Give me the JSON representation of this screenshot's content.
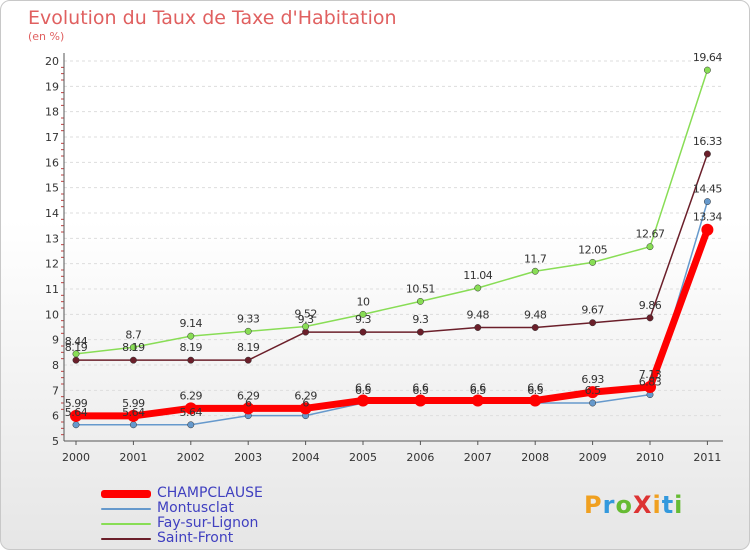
{
  "header": {
    "title": "Evolution du Taux de Taxe d'Habitation",
    "unit": "(en %)"
  },
  "logo": {
    "text": "ProXiti",
    "letters": [
      "P",
      "r",
      "o",
      "X",
      "i",
      "t",
      "i"
    ],
    "colors": [
      "#f0a020",
      "#3399dd",
      "#66bb33",
      "#dd3333",
      "#f0a020",
      "#3399dd",
      "#66bb33"
    ]
  },
  "chart_data": {
    "type": "line",
    "title": "Evolution du Taux de Taxe d'Habitation",
    "ylabel": "(en %)",
    "xlabel": "",
    "x": [
      2000,
      2001,
      2002,
      2003,
      2004,
      2005,
      2006,
      2007,
      2008,
      2009,
      2010,
      2011
    ],
    "ylim": [
      5,
      20
    ],
    "yticks": [
      5,
      6,
      7,
      8,
      9,
      10,
      11,
      12,
      13,
      14,
      15,
      16,
      17,
      18,
      19,
      20
    ],
    "grid": "horizontal",
    "legend_position": "bottom-left",
    "series": [
      {
        "name": "Saint-Front",
        "color": "#6b1f2a",
        "values": [
          8.19,
          8.19,
          8.19,
          8.19,
          9.3,
          9.3,
          9.3,
          9.48,
          9.48,
          9.67,
          9.86,
          16.33
        ],
        "labels": [
          "8.19",
          "8.19",
          "8.19",
          "8.19",
          "9.3",
          "9.3",
          "9.3",
          "9.48",
          "9.48",
          "9.67",
          "9.86",
          "16.33"
        ]
      },
      {
        "name": "Fay-sur-Lignon",
        "color": "#88dd55",
        "values": [
          8.44,
          8.7,
          9.14,
          9.33,
          9.52,
          10,
          10.51,
          11.04,
          11.7,
          12.05,
          12.67,
          19.64
        ],
        "labels": [
          "8.44",
          "8.7",
          "9.14",
          "9.33",
          "9.52",
          "10",
          "10.51",
          "11.04",
          "11.7",
          "12.05",
          "12.67",
          "19.64"
        ]
      },
      {
        "name": "Montusclat",
        "color": "#6699cc",
        "values": [
          5.64,
          5.64,
          5.64,
          6,
          6,
          6.5,
          6.5,
          6.5,
          6.5,
          6.5,
          6.83,
          14.45
        ],
        "labels": [
          "5.64",
          "5.64",
          "5.64",
          "6",
          "6",
          "6.5",
          "6.5",
          "6.5",
          "6.5",
          "6.5",
          "6.83",
          "14.45"
        ]
      },
      {
        "name": "CHAMPCLAUSE",
        "color": "#ff0000",
        "values": [
          5.99,
          5.99,
          6.29,
          6.29,
          6.29,
          6.6,
          6.6,
          6.6,
          6.6,
          6.93,
          7.13,
          13.34
        ],
        "labels": [
          "5.99",
          "5.99",
          "6.29",
          "6.29",
          "6.29",
          "6.6",
          "6.6",
          "6.6",
          "6.6",
          "6.93",
          "7.13",
          "13.34"
        ]
      }
    ],
    "legend": [
      "CHAMPCLAUSE",
      "Montusclat",
      "Fay-sur-Lignon",
      "Saint-Front"
    ]
  }
}
